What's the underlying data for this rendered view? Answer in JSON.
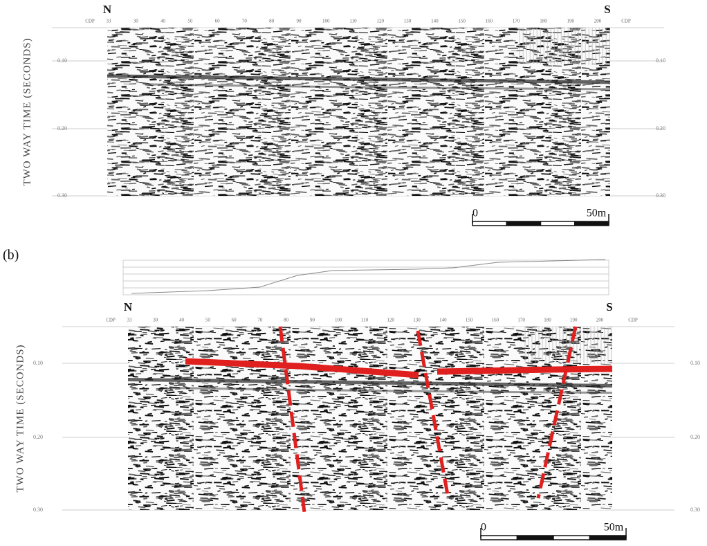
{
  "panels": [
    {
      "north": "N",
      "south": "S",
      "cdp_label": "CDP",
      "cdps": [
        "33",
        "30",
        "40",
        "50",
        "60",
        "70",
        "80",
        "90",
        "100",
        "110",
        "120",
        "130",
        "140",
        "150",
        "160",
        "170",
        "180",
        "190",
        "200"
      ],
      "axis_title": "TWO WAY TIME (SECONDS)",
      "time_ticks": [
        "0.10",
        "0.20",
        "0.30"
      ],
      "scale_bar": {
        "start": "0",
        "end": "50m"
      }
    },
    {
      "label": "(b)",
      "north": "N",
      "south": "S",
      "cdp_label": "CDP",
      "cdps": [
        "33",
        "30",
        "40",
        "50",
        "60",
        "70",
        "80",
        "90",
        "100",
        "110",
        "120",
        "130",
        "140",
        "150",
        "160",
        "170",
        "180",
        "190",
        "200"
      ],
      "axis_title": "TWO WAY TIME (SECONDS)",
      "time_ticks": [
        "0.10",
        "0.20",
        "0.30"
      ],
      "scale_bar": {
        "start": "0",
        "end": "50m"
      }
    }
  ]
}
